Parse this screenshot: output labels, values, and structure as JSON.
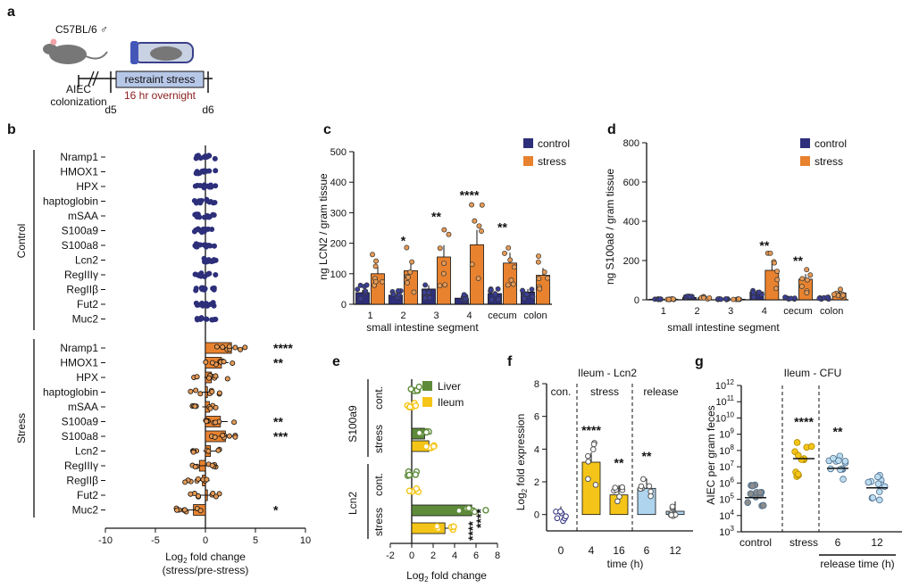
{
  "colors": {
    "control": "#2d2f7a",
    "stress": "#e8822e",
    "liver": "#5e8b3a",
    "ileum": "#f4c518",
    "release": "#aed4ee",
    "gray": "#9a9a9a"
  },
  "panel_a": {
    "label": "a",
    "mouse_strain": "C57BL/6 ♂",
    "box": "restraint stress",
    "left_label_1": "AIEC",
    "left_label_2": "colonization",
    "duration": "16 hr overnight",
    "day_start": "d5",
    "day_end": "d6"
  },
  "panel_b": {
    "label": "b",
    "group_control": "Control",
    "group_stress": "Stress",
    "xlabel_1": "Log",
    "xlabel_sub": "2",
    "xlabel_2": " fold change",
    "xlabel_3": "(stress/pre-stress)"
  },
  "panel_c": {
    "label": "c",
    "ylabel": "ng LCN2 / gram tissue",
    "xlabel": "small intestine segment",
    "legend": [
      "control",
      "stress"
    ]
  },
  "panel_d": {
    "label": "d",
    "ylabel": "ng S100a8 / gram tissue",
    "xlabel": "small intestine segment",
    "legend": [
      "control",
      "stress"
    ]
  },
  "panel_e": {
    "label": "e",
    "legend": [
      "Liver",
      "Ileum"
    ],
    "xlabel_1": "Log",
    "xlabel_sub": "2",
    "xlabel_2": " fold change",
    "g1": "S100a9",
    "g2": "Lcn2",
    "row_cont": "cont.",
    "row_stress": "stress"
  },
  "panel_f": {
    "label": "f",
    "title": "Ileum - Lcn2",
    "ylabel_1": "Log",
    "ylabel_sub": "2",
    "ylabel_2": " fold expression",
    "xlabel": "time (h)",
    "seg_con": "con.",
    "seg_stress": "stress",
    "seg_release": "release"
  },
  "panel_g": {
    "label": "g",
    "title": "Ileum - CFU",
    "ylabel": "AIEC per gram feces",
    "xlabel": "release time (h)"
  },
  "chart_data": [
    {
      "type": "bar",
      "id": "b",
      "orientation": "horizontal",
      "title": "",
      "xlabel": "Log2 fold change (stress/pre-stress)",
      "xlim": [
        -10,
        10
      ],
      "xticks": [
        -10,
        -5,
        0,
        5,
        10
      ],
      "control": {
        "genes": [
          "Nramp1",
          "HMOX1",
          "HPX",
          "haptoglobin",
          "mSAA",
          "S100a9",
          "S100a8",
          "Lcn2",
          "RegIIIγ",
          "RegIIβ",
          "Fut2",
          "Muc2"
        ],
        "values": [
          0,
          0,
          0,
          0,
          0,
          0,
          0,
          0,
          0,
          0,
          0,
          0
        ],
        "stars": [
          "",
          "",
          "",
          "",
          "",
          "",
          "",
          "",
          "",
          "",
          "",
          ""
        ]
      },
      "stress": {
        "genes": [
          "Nramp1",
          "HMOX1",
          "HPX",
          "haptoglobin",
          "mSAA",
          "S100a9",
          "S100a8",
          "Lcn2",
          "RegIIIγ",
          "RegIIβ",
          "Fut2",
          "Muc2"
        ],
        "values": [
          2.6,
          1.6,
          0.6,
          0.2,
          0.4,
          1.5,
          2.0,
          0.5,
          -0.6,
          -0.3,
          0.2,
          -1.2
        ],
        "stars": [
          "****",
          "**",
          "",
          "",
          "",
          "**",
          "***",
          "",
          "",
          "",
          "",
          "*"
        ]
      }
    },
    {
      "type": "bar",
      "id": "c",
      "ylabel": "ng LCN2 / gram tissue",
      "xlabel": "small intestine segment",
      "ylim": [
        0,
        500
      ],
      "yticks": [
        0,
        100,
        200,
        300,
        400,
        500
      ],
      "categories": [
        "1",
        "2",
        "3",
        "4",
        "cecum",
        "colon"
      ],
      "series": [
        {
          "name": "control",
          "values": [
            38,
            30,
            50,
            20,
            35,
            40
          ]
        },
        {
          "name": "stress",
          "values": [
            100,
            110,
            155,
            195,
            135,
            95
          ]
        }
      ],
      "stars": [
        "",
        "*",
        "**",
        "****",
        "**",
        ""
      ]
    },
    {
      "type": "bar",
      "id": "d",
      "ylabel": "ng S100a8 / gram tissue",
      "xlabel": "small intestine segment",
      "ylim": [
        0,
        800
      ],
      "yticks": [
        0,
        200,
        400,
        600,
        800
      ],
      "categories": [
        "1",
        "2",
        "3",
        "4",
        "cecum",
        "colon"
      ],
      "series": [
        {
          "name": "control",
          "values": [
            3,
            12,
            3,
            40,
            8,
            8
          ]
        },
        {
          "name": "stress",
          "values": [
            3,
            10,
            3,
            150,
            105,
            35
          ]
        }
      ],
      "stars": [
        "",
        "",
        "",
        "**",
        "**",
        ""
      ]
    },
    {
      "type": "bar",
      "id": "e",
      "orientation": "horizontal",
      "xlabel": "Log2 fold change",
      "xlim": [
        -2,
        8
      ],
      "xticks": [
        -2,
        0,
        2,
        4,
        6,
        8
      ],
      "groups": [
        "S100a9",
        "Lcn2"
      ],
      "rows": [
        "cont.",
        "stress"
      ],
      "series": [
        {
          "name": "Liver",
          "values": [
            [
              0.2,
              1.2
            ],
            [
              0.1,
              5.6
            ]
          ]
        },
        {
          "name": "Ileum",
          "values": [
            [
              0.1,
              1.6
            ],
            [
              0.2,
              3.1
            ]
          ]
        }
      ],
      "stars": [
        "****",
        "****"
      ]
    },
    {
      "type": "bar",
      "id": "f",
      "title": "Ileum - Lcn2",
      "ylabel": "Log2 fold expression",
      "xlabel": "time (h)",
      "ylim": [
        -1,
        8
      ],
      "yticks": [
        0,
        2,
        4,
        6,
        8
      ],
      "categories": [
        "0",
        "4",
        "16",
        "6",
        "12"
      ],
      "values": [
        -0.1,
        3.2,
        1.2,
        1.6,
        0.2
      ],
      "groups": [
        "con.",
        "stress",
        "stress",
        "release",
        "release"
      ],
      "stars": [
        "",
        "****",
        "**",
        "**",
        ""
      ]
    },
    {
      "type": "scatter",
      "id": "g",
      "title": "Ileum - CFU",
      "ylabel": "AIEC per gram feces",
      "xlabel": "release time (h)",
      "yscale": "log",
      "ylim_exp": [
        3,
        12
      ],
      "yticks": [
        "10^3",
        "10^4",
        "10^5",
        "10^6",
        "10^7",
        "10^8",
        "10^9",
        "10^10",
        "10^11",
        "10^12"
      ],
      "categories": [
        "control",
        "stress",
        "6",
        "12"
      ],
      "median_exp": [
        5.1,
        7.5,
        6.9,
        5.7
      ],
      "stars": [
        "",
        "****",
        "**",
        ""
      ]
    }
  ]
}
